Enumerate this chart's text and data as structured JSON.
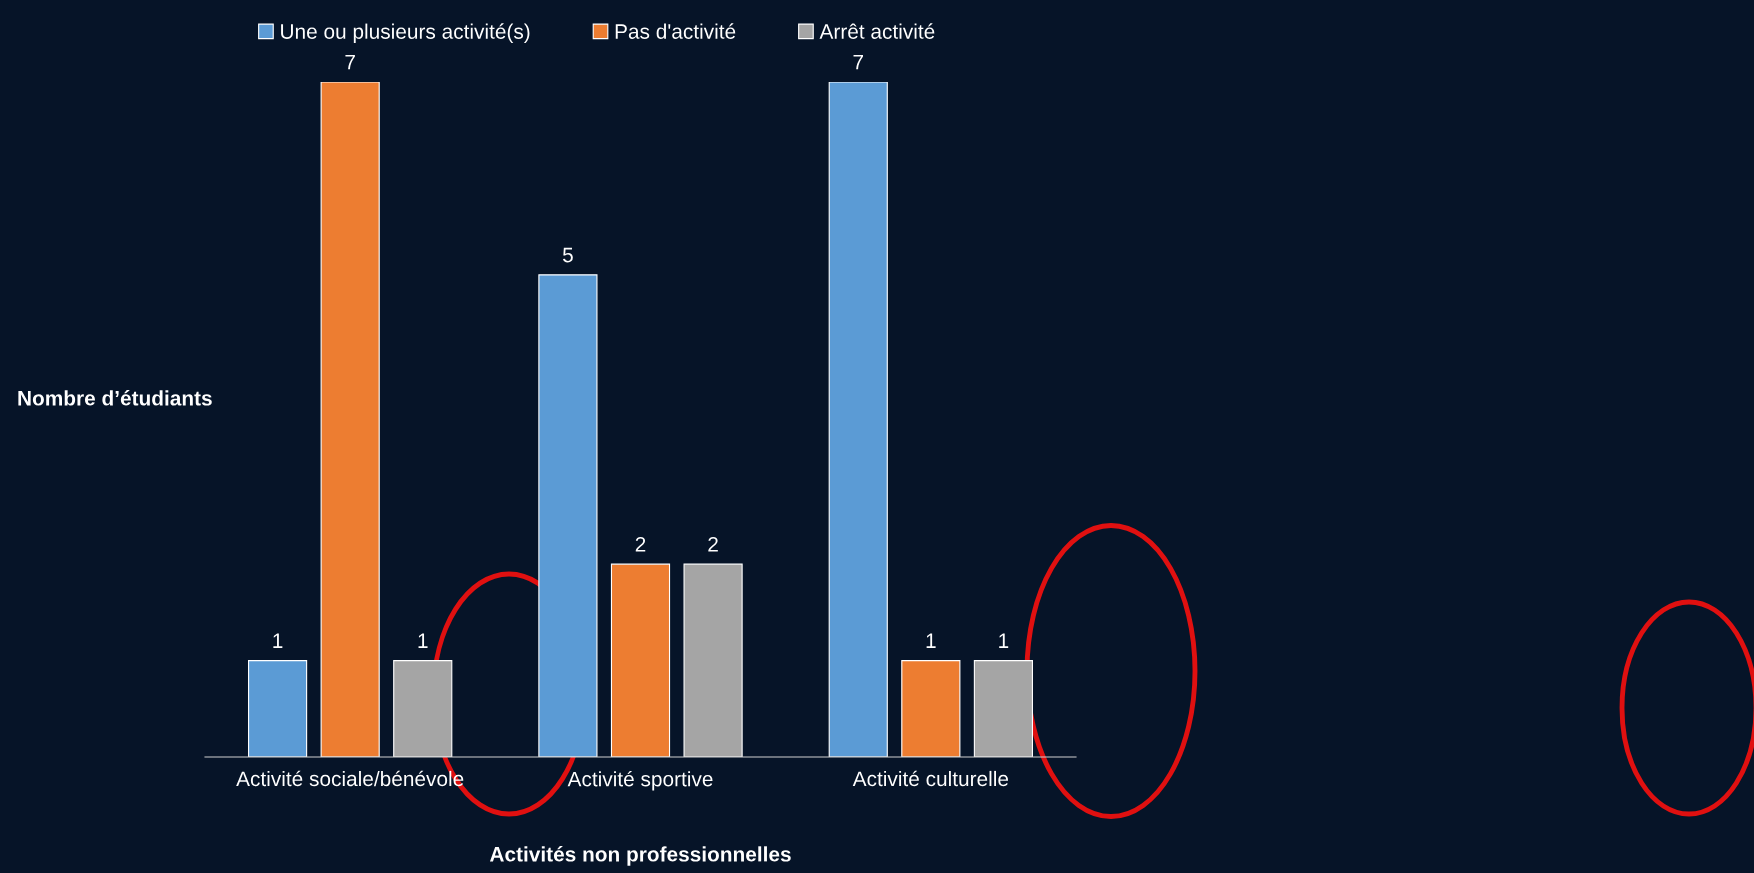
{
  "chart_data": {
    "type": "bar",
    "xlabel": "Activités non professionnelles",
    "ylabel": "Nombre d’étudiants",
    "categories": [
      "Activité sociale/bénévole",
      "Activité sportive",
      "Activité culturelle"
    ],
    "series": [
      {
        "name": "Une ou plusieurs activité(s)",
        "color": "#5b9bd5",
        "values": [
          1,
          5,
          7
        ]
      },
      {
        "name": "Pas d'activité",
        "color": "#ed7d31",
        "values": [
          7,
          2,
          1
        ]
      },
      {
        "name": "Arrêt activité",
        "color": "#a5a5a5",
        "values": [
          1,
          2,
          1
        ]
      }
    ],
    "ylim": [
      0,
      7
    ],
    "tick_labels": "x",
    "data_labels": true,
    "legend": "top",
    "grid": false
  }
}
